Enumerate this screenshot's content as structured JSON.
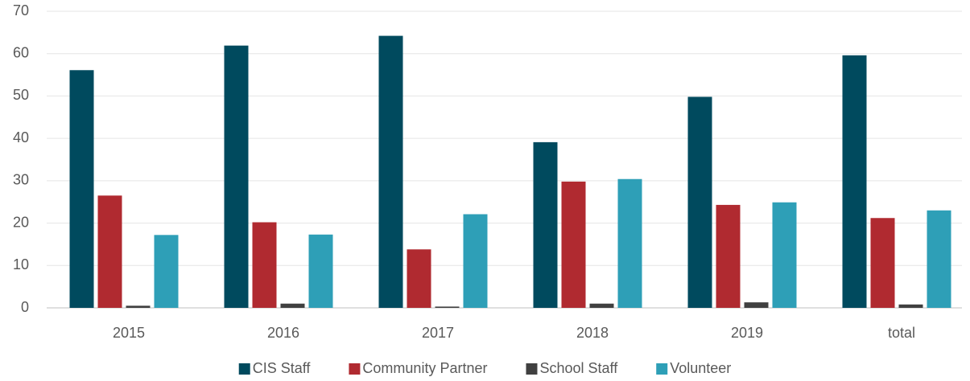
{
  "chart_data": {
    "type": "bar",
    "categories": [
      "2015",
      "2016",
      "2017",
      "2018",
      "2019",
      "total"
    ],
    "series": [
      {
        "name": "CIS Staff",
        "color": "#004a5e",
        "values": [
          56.1,
          61.9,
          64.2,
          39.1,
          49.8,
          59.6
        ]
      },
      {
        "name": "Community Partner",
        "color": "#b02a30",
        "values": [
          26.5,
          20.2,
          13.8,
          29.8,
          24.3,
          21.2
        ]
      },
      {
        "name": "School Staff",
        "color": "#404040",
        "values": [
          0.5,
          1.0,
          0.3,
          1.0,
          1.3,
          0.8
        ]
      },
      {
        "name": "Volunteer",
        "color": "#2e9fb7",
        "values": [
          17.2,
          17.3,
          22.1,
          30.4,
          24.9,
          23.0
        ]
      }
    ],
    "ylim": [
      0,
      70
    ],
    "yticks": [
      0,
      10,
      20,
      30,
      40,
      50,
      60,
      70
    ],
    "grid": true,
    "legend": "bottom"
  }
}
